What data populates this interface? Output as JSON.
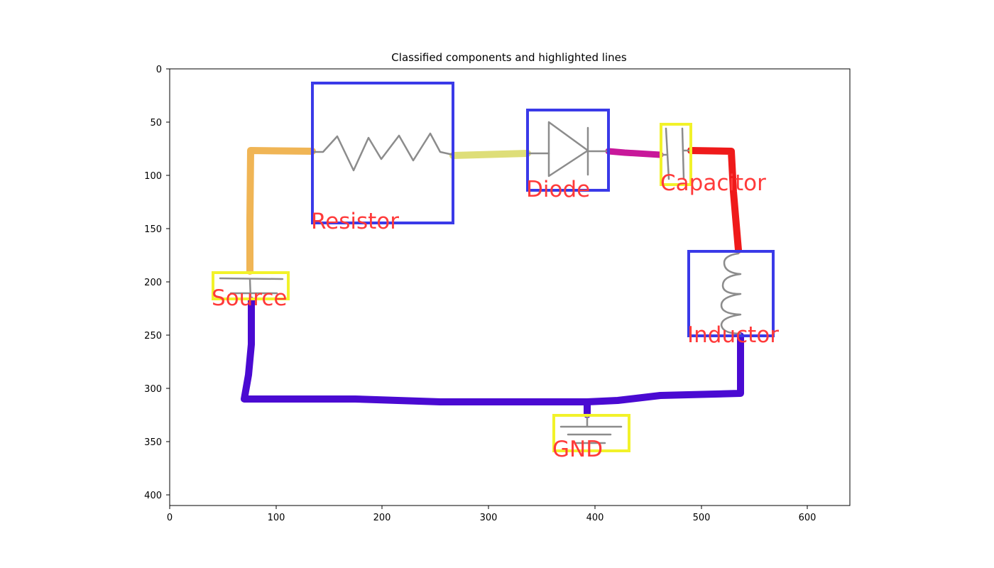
{
  "figure": {
    "title": "Classified components and highlighted lines"
  },
  "axes": {
    "x_ticks": [
      "0",
      "100",
      "200",
      "300",
      "400",
      "500",
      "600"
    ],
    "y_ticks": [
      "0",
      "50",
      "100",
      "150",
      "200",
      "250",
      "300",
      "350",
      "400"
    ],
    "x_range": [
      0,
      640
    ],
    "y_range": [
      0,
      410
    ],
    "y_inverted": true
  },
  "components": [
    {
      "name": "Resistor",
      "label": "Resistor",
      "category": "blue",
      "box_color": "#3a3ae8"
    },
    {
      "name": "Diode",
      "label": "Diode",
      "category": "blue",
      "box_color": "#3a3ae8"
    },
    {
      "name": "Capacitor",
      "label": "Capacitor",
      "category": "yellow",
      "box_color": "#f2f22a"
    },
    {
      "name": "Inductor",
      "label": "Inductor",
      "category": "blue",
      "box_color": "#3a3ae8"
    },
    {
      "name": "Source",
      "label": "Source",
      "category": "yellow",
      "box_color": "#f2f22a"
    },
    {
      "name": "GND",
      "label": "GND",
      "category": "yellow",
      "box_color": "#f2f22a"
    }
  ],
  "wires": [
    {
      "name": "source-to-resistor",
      "color": "#f0b555"
    },
    {
      "name": "resistor-to-diode",
      "color": "#dede78"
    },
    {
      "name": "diode-to-capacitor",
      "color": "#c8189a"
    },
    {
      "name": "capacitor-to-inductor",
      "color": "#ef1a1a"
    },
    {
      "name": "ground-loop",
      "color": "#4a0ad2"
    }
  ],
  "label_color": "#ff3a3a",
  "symbol_color": "#8c8c8c"
}
